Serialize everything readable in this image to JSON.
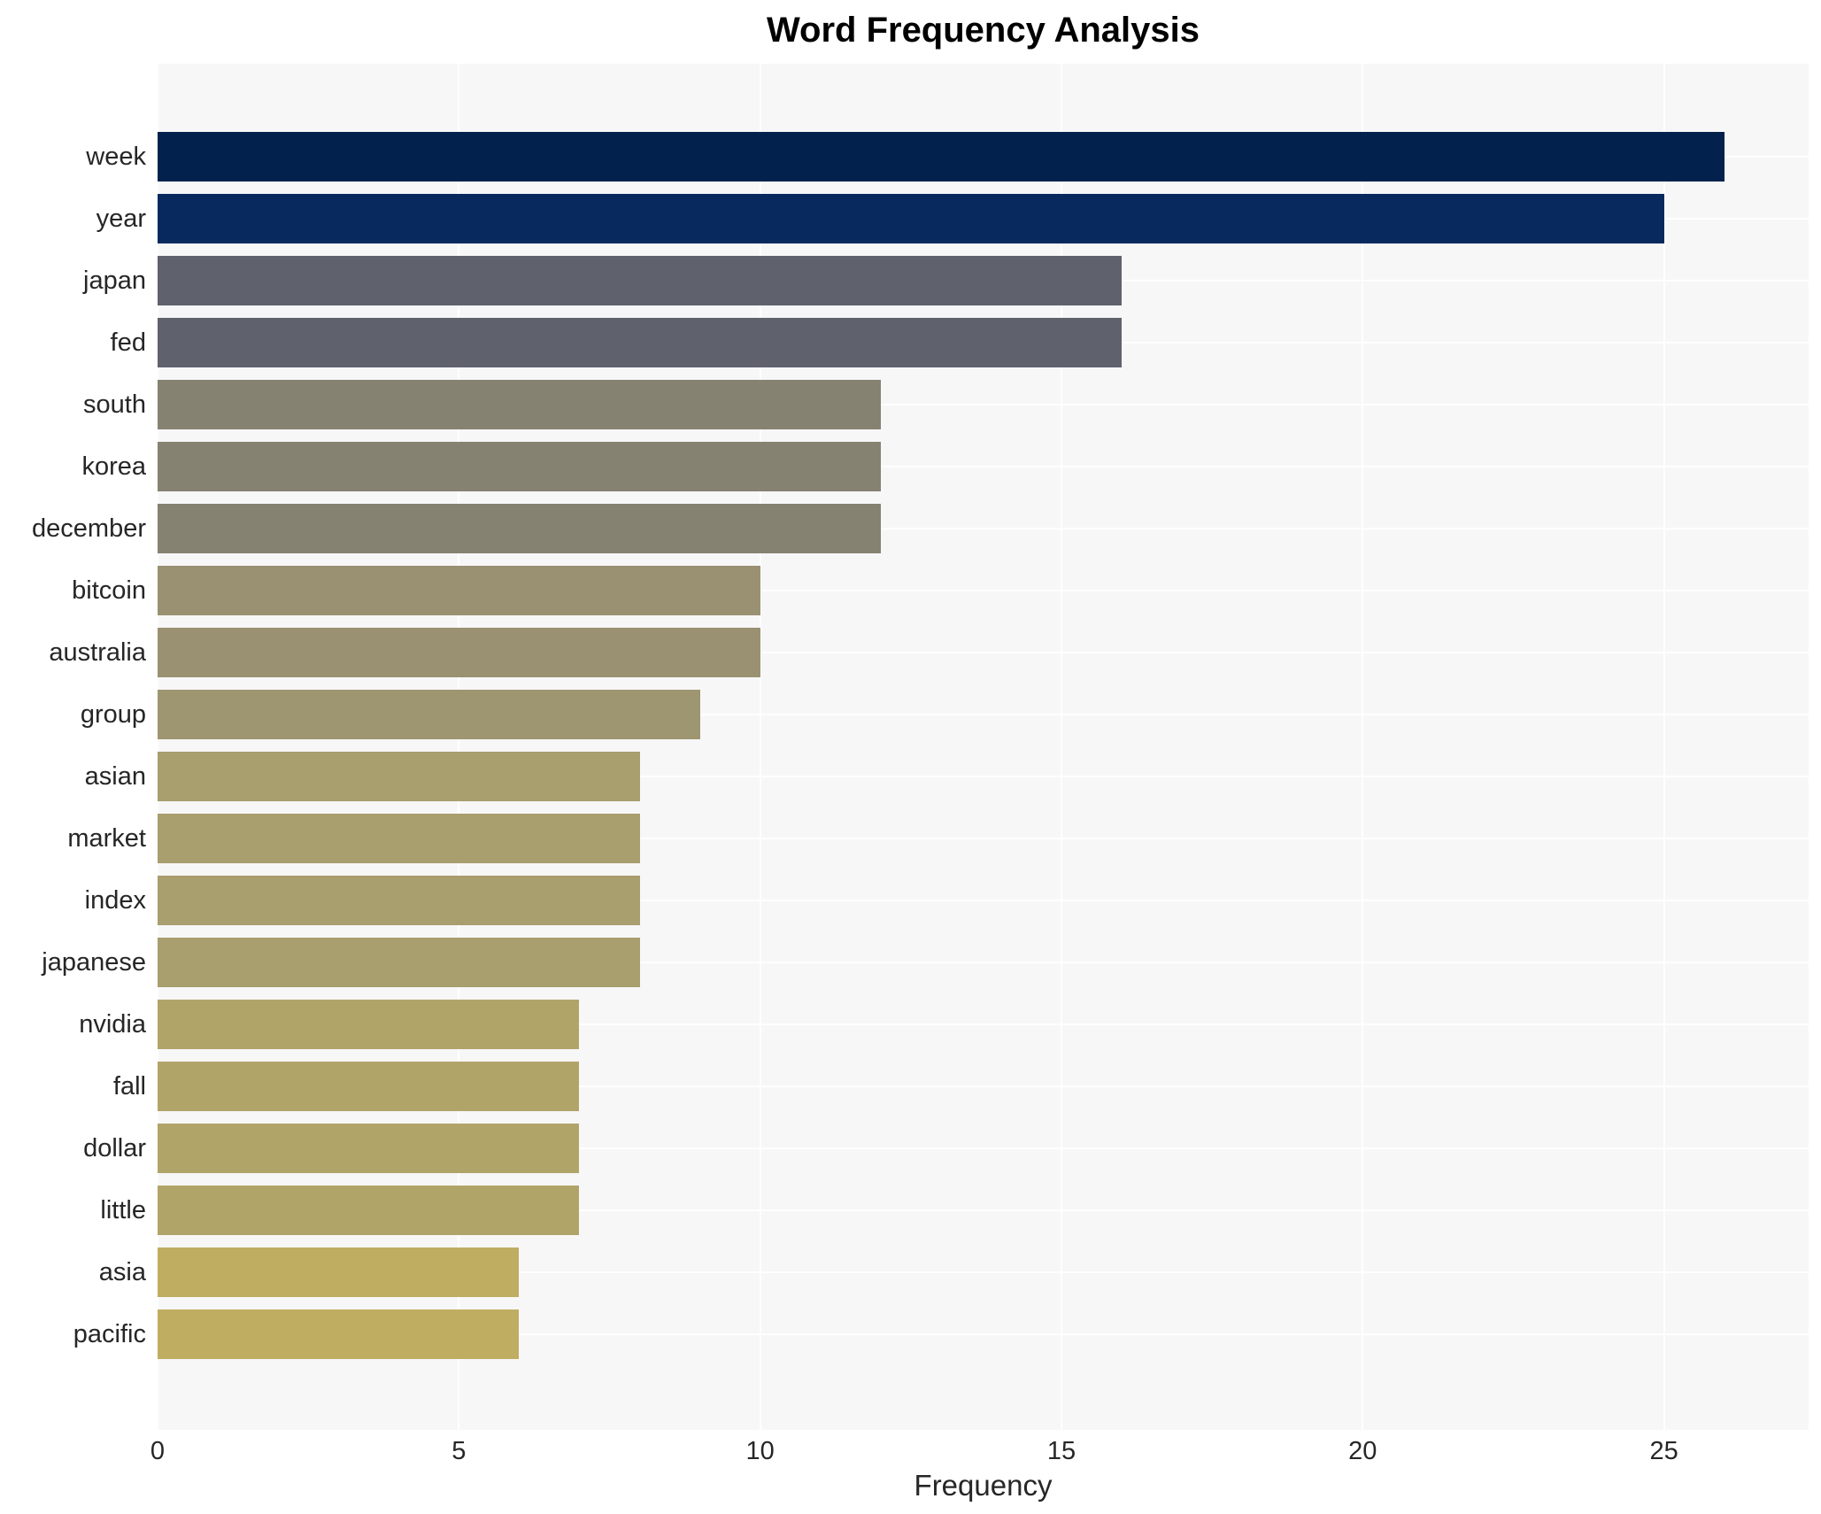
{
  "chart_data": {
    "type": "bar",
    "orientation": "horizontal",
    "title": "Word Frequency Analysis",
    "xlabel": "Frequency",
    "ylabel": "",
    "categories": [
      "week",
      "year",
      "japan",
      "fed",
      "south",
      "korea",
      "december",
      "bitcoin",
      "australia",
      "group",
      "asian",
      "market",
      "index",
      "japanese",
      "nvidia",
      "fall",
      "dollar",
      "little",
      "asia",
      "pacific"
    ],
    "values": [
      26,
      25,
      16,
      16,
      12,
      12,
      12,
      10,
      10,
      9,
      8,
      8,
      8,
      8,
      7,
      7,
      7,
      7,
      6,
      6
    ],
    "bar_colors": [
      "#03214d",
      "#08295e",
      "#5f616d",
      "#5f616d",
      "#868272",
      "#868272",
      "#868272",
      "#9a9173",
      "#9a9173",
      "#9e9571",
      "#a89e6e",
      "#a89e6e",
      "#a89e6e",
      "#a89e6e",
      "#b1a469",
      "#b1a469",
      "#b1a469",
      "#b1a469",
      "#bfad62",
      "#bfad62"
    ],
    "x_ticks": [
      0,
      5,
      10,
      15,
      20,
      25
    ],
    "xlim": [
      0,
      27.4
    ],
    "grid": true,
    "legend_position": "none",
    "plot_background": "#f7f7f8",
    "grid_color": "#ffffff",
    "text_color": "#262626"
  }
}
